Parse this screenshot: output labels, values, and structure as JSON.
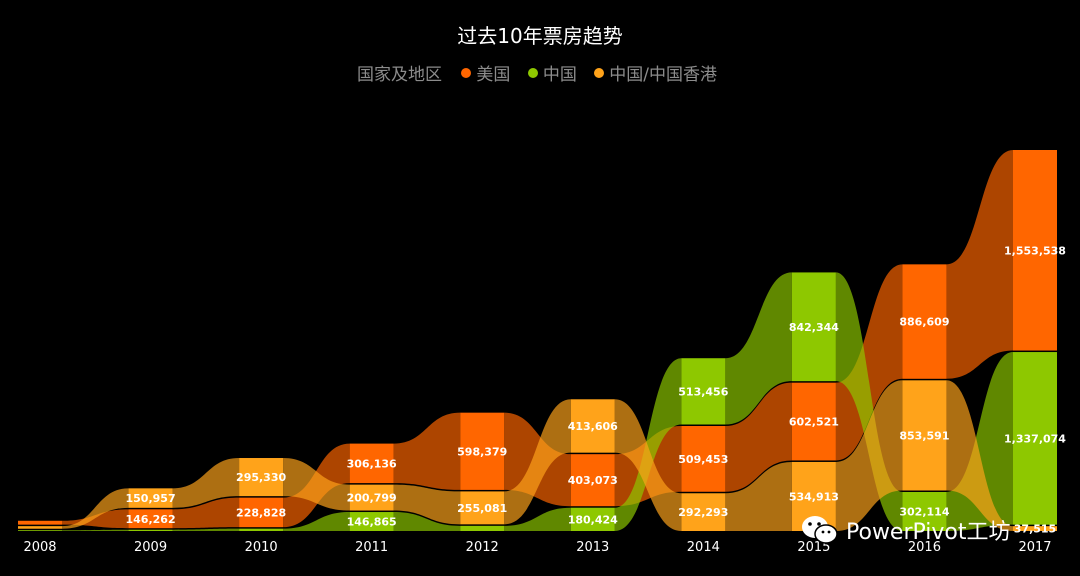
{
  "chart_data": {
    "type": "ribbon",
    "title": "过去10年票房趋势",
    "legend_title": "国家及地区",
    "categories": [
      "2008",
      "2009",
      "2010",
      "2011",
      "2012",
      "2013",
      "2014",
      "2015",
      "2016",
      "2017"
    ],
    "series": [
      {
        "name": "美国",
        "color": "#ff6600",
        "values": [
          30000,
          146262,
          228828,
          306136,
          598379,
          403073,
          509453,
          602521,
          886609,
          1553538
        ],
        "labels": [
          "",
          "146,262",
          "228,828",
          "306,136",
          "598,379",
          "403,073",
          "509,453",
          "602,521",
          "886,609",
          "1,553,538"
        ]
      },
      {
        "name": "中国",
        "color": "#8ec800",
        "values": [
          6000,
          10000,
          18000,
          146865,
          40000,
          180424,
          513456,
          842344,
          302114,
          1337074
        ],
        "labels": [
          "",
          "",
          "",
          "146,865",
          "",
          "180,424",
          "513,456",
          "842,344",
          "302,114",
          "1,337,074"
        ]
      },
      {
        "name": "中国/中国香港",
        "color": "#ffa31a",
        "values": [
          20000,
          150957,
          295330,
          200799,
          255081,
          413606,
          292293,
          534913,
          853591,
          37515
        ],
        "labels": [
          "",
          "150,957",
          "295,330",
          "200,799",
          "255,081",
          "413,606",
          "292,293",
          "534,913",
          "853,591",
          "37,515"
        ]
      }
    ],
    "grid": false,
    "legend_position": "top"
  },
  "watermark": {
    "text": "PowerPivot工坊",
    "icon": "wechat-icon"
  }
}
